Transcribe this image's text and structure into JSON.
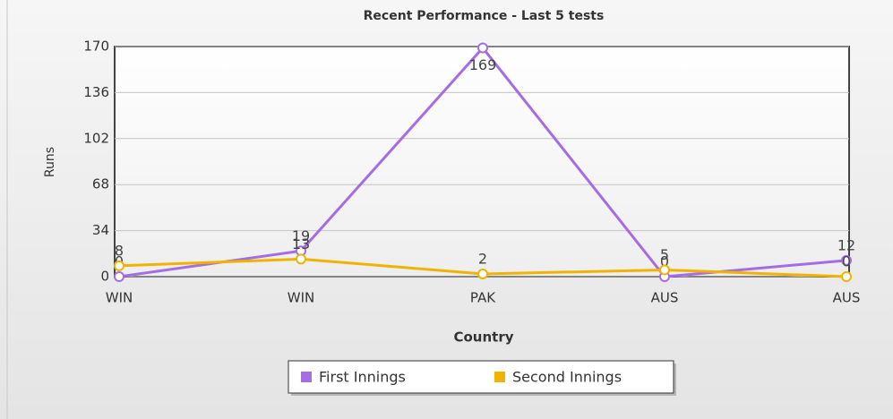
{
  "chart_data": {
    "type": "line",
    "title": "Recent Performance - Last 5 tests",
    "x_label": "Country",
    "y_label": "Runs",
    "categories": [
      "WIN",
      "WIN",
      "PAK",
      "AUS",
      "AUS"
    ],
    "series": [
      {
        "name": "First Innings",
        "color": "#a56de2",
        "values": [
          0,
          19,
          169,
          0,
          12
        ]
      },
      {
        "name": "Second Innings",
        "color": "#f0b400",
        "values": [
          8,
          13,
          2,
          5,
          0
        ]
      }
    ],
    "ylim": [
      0,
      170
    ],
    "yticks": [
      0,
      34,
      68,
      102,
      136,
      170
    ],
    "grid": true,
    "legend": "bottom"
  }
}
